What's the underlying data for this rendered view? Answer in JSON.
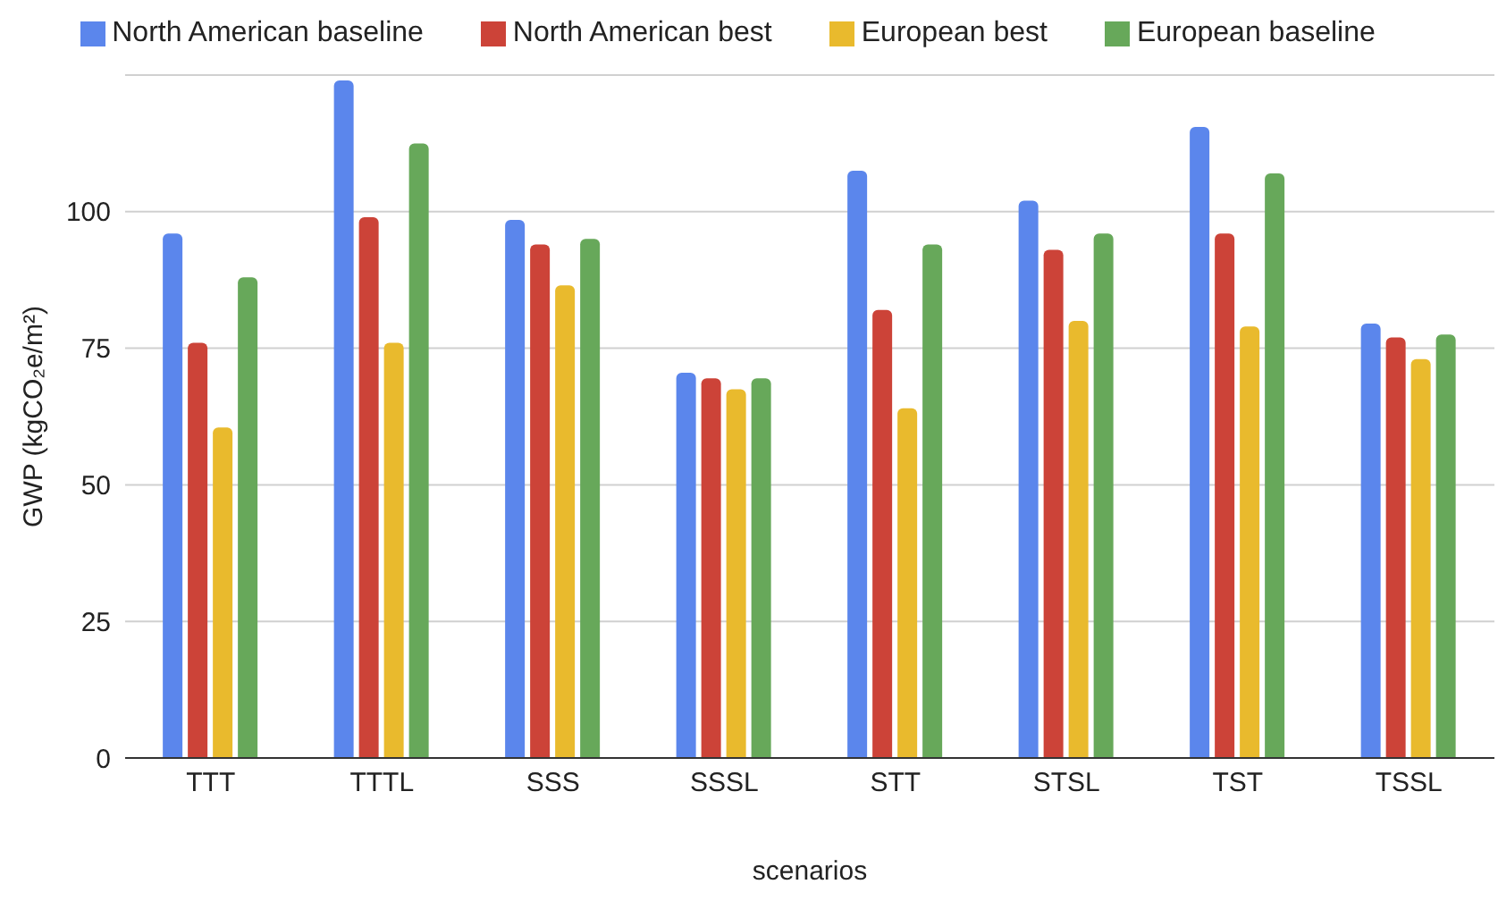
{
  "chart_data": {
    "type": "bar",
    "xlabel": "scenarios",
    "ylabel": "GWP (kgCO₂e/m²)",
    "categories": [
      "TTT",
      "TTTL",
      "SSS",
      "SSSL",
      "STT",
      "STSL",
      "TST",
      "TSSL"
    ],
    "series": [
      {
        "name": "North American baseline",
        "color": "#5b86ec",
        "values": [
          96,
          124,
          98.5,
          70.5,
          107.5,
          102,
          115.5,
          79.5
        ]
      },
      {
        "name": "North American best",
        "color": "#cc4338",
        "values": [
          76,
          99,
          94,
          69.5,
          82,
          93,
          96,
          77
        ]
      },
      {
        "name": "European best",
        "color": "#e9ba2d",
        "values": [
          60.5,
          76,
          86.5,
          67.5,
          64,
          80,
          79,
          73
        ]
      },
      {
        "name": "European baseline",
        "color": "#67a85a",
        "values": [
          88,
          112.5,
          95,
          69.5,
          94,
          96,
          107,
          77.5
        ]
      }
    ],
    "ylim": [
      0,
      125
    ],
    "yticks": [
      0,
      25,
      50,
      75,
      100
    ],
    "grid": "y",
    "legend": "top"
  }
}
